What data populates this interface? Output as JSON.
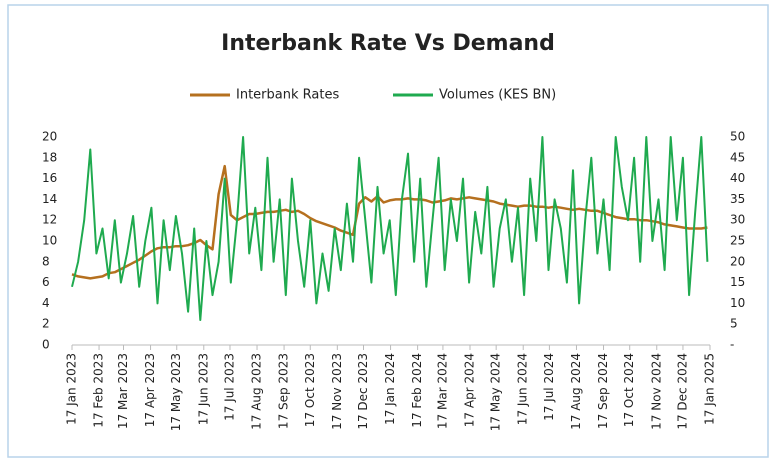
{
  "chart_data": {
    "type": "line",
    "title": "Interbank Rate Vs Demand",
    "x": [
      "2023-01-17",
      "2023-01-24",
      "2023-01-31",
      "2023-02-07",
      "2023-02-14",
      "2023-02-21",
      "2023-02-28",
      "2023-03-07",
      "2023-03-14",
      "2023-03-21",
      "2023-03-28",
      "2023-04-04",
      "2023-04-11",
      "2023-04-18",
      "2023-04-25",
      "2023-05-02",
      "2023-05-09",
      "2023-05-16",
      "2023-05-23",
      "2023-05-30",
      "2023-06-06",
      "2023-06-13",
      "2023-06-20",
      "2023-06-27",
      "2023-07-04",
      "2023-07-11",
      "2023-07-18",
      "2023-07-25",
      "2023-08-01",
      "2023-08-08",
      "2023-08-15",
      "2023-08-22",
      "2023-08-29",
      "2023-09-05",
      "2023-09-12",
      "2023-09-19",
      "2023-09-26",
      "2023-10-03",
      "2023-10-10",
      "2023-10-17",
      "2023-10-24",
      "2023-10-31",
      "2023-11-07",
      "2023-11-14",
      "2023-11-21",
      "2023-11-28",
      "2023-12-05",
      "2023-12-12",
      "2023-12-19",
      "2023-12-26",
      "2024-01-02",
      "2024-01-09",
      "2024-01-16",
      "2024-01-23",
      "2024-01-30",
      "2024-02-06",
      "2024-02-13",
      "2024-02-20",
      "2024-02-27",
      "2024-03-05",
      "2024-03-12",
      "2024-03-19",
      "2024-03-26",
      "2024-04-02",
      "2024-04-09",
      "2024-04-16",
      "2024-04-23",
      "2024-04-30",
      "2024-05-07",
      "2024-05-14",
      "2024-05-21",
      "2024-05-28",
      "2024-06-04",
      "2024-06-11",
      "2024-06-18",
      "2024-06-25",
      "2024-07-02",
      "2024-07-09",
      "2024-07-16",
      "2024-07-23",
      "2024-07-30",
      "2024-08-06",
      "2024-08-13",
      "2024-08-20",
      "2024-08-27",
      "2024-09-03",
      "2024-09-10",
      "2024-09-17",
      "2024-09-24",
      "2024-10-01",
      "2024-10-08",
      "2024-10-15",
      "2024-10-22",
      "2024-10-29",
      "2024-11-05",
      "2024-11-12",
      "2024-11-19",
      "2024-11-26",
      "2024-12-03",
      "2024-12-10",
      "2024-12-17",
      "2024-12-24",
      "2024-12-31",
      "2025-01-07",
      "2025-01-14"
    ],
    "series": [
      {
        "name": "Interbank Rates",
        "color": "#b5701f",
        "values": [
          6.8,
          6.6,
          6.5,
          6.4,
          6.5,
          6.6,
          6.9,
          7.0,
          7.3,
          7.6,
          7.9,
          8.2,
          8.6,
          9.0,
          9.3,
          9.4,
          9.4,
          9.5,
          9.5,
          9.6,
          9.8,
          10.1,
          9.6,
          9.2,
          14.5,
          17.2,
          12.5,
          12.0,
          12.3,
          12.6,
          12.6,
          12.7,
          12.8,
          12.8,
          12.9,
          13.0,
          12.8,
          12.9,
          12.6,
          12.2,
          11.9,
          11.7,
          11.5,
          11.3,
          11.0,
          10.8,
          10.6,
          13.6,
          14.2,
          13.8,
          14.3,
          13.7,
          13.9,
          14.0,
          14.0,
          14.1,
          14.0,
          14.0,
          13.9,
          13.7,
          13.8,
          13.9,
          14.1,
          14.0,
          14.1,
          14.2,
          14.1,
          14.0,
          13.9,
          13.8,
          13.6,
          13.5,
          13.4,
          13.3,
          13.4,
          13.4,
          13.3,
          13.3,
          13.2,
          13.3,
          13.2,
          13.1,
          13.0,
          13.1,
          13.0,
          12.9,
          12.9,
          12.7,
          12.5,
          12.3,
          12.2,
          12.1,
          12.1,
          12.0,
          12.0,
          11.9,
          11.8,
          11.6,
          11.5,
          11.4,
          11.3,
          11.2,
          11.2,
          11.2,
          11.3
        ]
      },
      {
        "name": "Volumes (KES BN)",
        "color": "#1faa4f",
        "axis": "y2",
        "values": [
          14,
          20,
          30,
          47,
          22,
          28,
          16,
          30,
          15,
          22,
          31,
          14,
          25,
          33,
          10,
          30,
          18,
          31,
          22,
          8,
          28,
          6,
          25,
          12,
          20,
          40,
          15,
          30,
          50,
          22,
          33,
          18,
          45,
          20,
          35,
          12,
          40,
          25,
          14,
          30,
          10,
          22,
          13,
          28,
          18,
          34,
          20,
          45,
          30,
          15,
          38,
          22,
          30,
          12,
          35,
          46,
          20,
          40,
          14,
          30,
          45,
          18,
          35,
          25,
          40,
          15,
          32,
          22,
          38,
          14,
          28,
          35,
          20,
          33,
          12,
          40,
          25,
          50,
          18,
          35,
          28,
          15,
          42,
          10,
          30,
          45,
          22,
          35,
          18,
          50,
          38,
          30,
          45,
          20,
          50,
          25,
          35,
          18,
          50,
          30,
          45,
          12,
          32,
          50,
          20
        ]
      }
    ],
    "xlim": [
      "2023-01-17",
      "2025-01-17"
    ],
    "xticks": [
      {
        "value": "2023-01-17",
        "label": "17 Jan 2023"
      },
      {
        "value": "2023-02-17",
        "label": "17 Feb 2023"
      },
      {
        "value": "2023-03-17",
        "label": "17 Mar 2023"
      },
      {
        "value": "2023-04-17",
        "label": "17 Apr 2023"
      },
      {
        "value": "2023-05-17",
        "label": "17 May 2023"
      },
      {
        "value": "2023-06-17",
        "label": "17 Jun 2023"
      },
      {
        "value": "2023-07-17",
        "label": "17 Jul 2023"
      },
      {
        "value": "2023-08-17",
        "label": "17 Aug 2023"
      },
      {
        "value": "2023-09-17",
        "label": "17 Sep 2023"
      },
      {
        "value": "2023-10-17",
        "label": "17 Oct 2023"
      },
      {
        "value": "2023-11-17",
        "label": "17 Nov 2023"
      },
      {
        "value": "2023-12-17",
        "label": "17 Dec 2023"
      },
      {
        "value": "2024-01-17",
        "label": "17 Jan 2024"
      },
      {
        "value": "2024-02-17",
        "label": "17 Feb 2024"
      },
      {
        "value": "2024-03-17",
        "label": "17 Mar 2024"
      },
      {
        "value": "2024-04-17",
        "label": "17 Apr 2024"
      },
      {
        "value": "2024-05-17",
        "label": "17 May 2024"
      },
      {
        "value": "2024-06-17",
        "label": "17 Jun 2024"
      },
      {
        "value": "2024-07-17",
        "label": "17 Jul 2024"
      },
      {
        "value": "2024-08-17",
        "label": "17 Aug 2024"
      },
      {
        "value": "2024-09-17",
        "label": "17 Sep 2024"
      },
      {
        "value": "2024-10-17",
        "label": "17 Oct 2024"
      },
      {
        "value": "2024-11-17",
        "label": "17 Nov 2024"
      },
      {
        "value": "2024-12-17",
        "label": "17 Dec 2024"
      },
      {
        "value": "2025-01-17",
        "label": "17 Jan 2025"
      }
    ],
    "ylim": [
      0,
      20
    ],
    "yticks": [
      0,
      2,
      4,
      6,
      8,
      10,
      12,
      14,
      16,
      18,
      20
    ],
    "y2lim": [
      0,
      50
    ],
    "y2ticks": [
      {
        "value": 0,
        "label": "-"
      },
      5,
      10,
      15,
      20,
      25,
      30,
      35,
      40,
      45,
      50
    ],
    "legend": "top"
  }
}
